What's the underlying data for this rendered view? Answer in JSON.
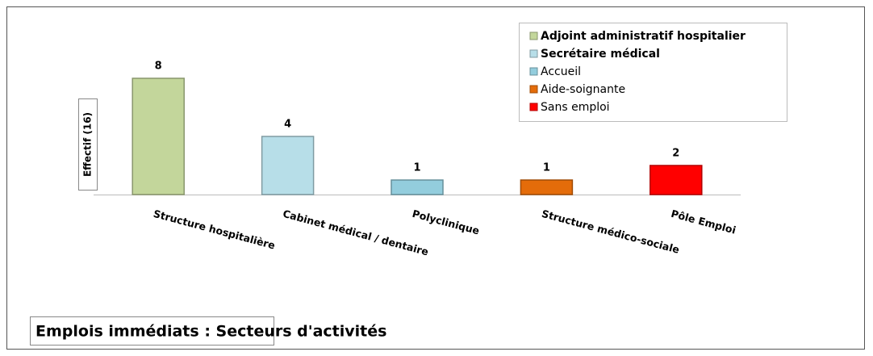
{
  "chart_data": {
    "type": "bar",
    "title": "Emplois immédiats : Secteurs d'activités",
    "y_label": "Effectif (16)",
    "categories": [
      "Structure hospitalière",
      "Cabinet médical / dentaire",
      "Polyclinique",
      "Structure médico-sociale",
      "Pôle Emploi"
    ],
    "series": [
      {
        "name": "Adjoint administratif hospitalier",
        "color": "#c3d69b",
        "bold": true,
        "values": [
          8,
          null,
          null,
          null,
          null
        ]
      },
      {
        "name": "Secrétaire médical",
        "color": "#b7dee8",
        "bold": true,
        "values": [
          null,
          4,
          null,
          null,
          null
        ]
      },
      {
        "name": "Accueil",
        "color": "#93cddd",
        "values": [
          null,
          null,
          1,
          null,
          null
        ]
      },
      {
        "name": "Aide-soignante",
        "color": "#e46c0a",
        "values": [
          null,
          null,
          null,
          1,
          null
        ]
      },
      {
        "name": "Sans emploi",
        "color": "#ff0000",
        "values": [
          null,
          null,
          null,
          null,
          2
        ]
      }
    ],
    "ylim": [
      0,
      8
    ],
    "legend": "top-right"
  }
}
